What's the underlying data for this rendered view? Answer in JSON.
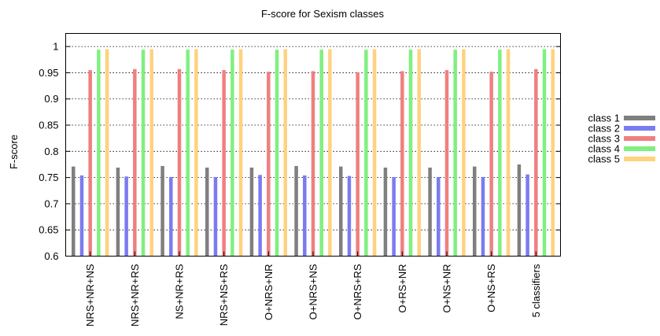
{
  "chart_data": {
    "type": "bar",
    "title": "F-score for Sexism classes",
    "xlabel": "",
    "ylabel": "F-score",
    "ylim": [
      0.6,
      1.025
    ],
    "yticks": [
      "0.6",
      "0.65",
      "0.7",
      "0.75",
      "0.8",
      "0.85",
      "0.9",
      "0.95",
      "1"
    ],
    "grid": true,
    "legend_position": "right",
    "categories": [
      "NRS+NR+NS",
      "NRS+NR+RS",
      "NS+NR+RS",
      "NRS+NS+RS",
      "O+NRS+NR",
      "O+NRS+NS",
      "O+NRS+RS",
      "O+RS+NR",
      "O+NS+NR",
      "O+NS+RS",
      "5 classifiers"
    ],
    "series": [
      {
        "name": "class 1",
        "color": "#7f7f7f",
        "values": [
          0.771,
          0.769,
          0.772,
          0.769,
          0.769,
          0.772,
          0.771,
          0.769,
          0.769,
          0.771,
          0.775
        ]
      },
      {
        "name": "class 2",
        "color": "#7b7bf0",
        "values": [
          0.754,
          0.752,
          0.751,
          0.751,
          0.755,
          0.754,
          0.753,
          0.751,
          0.751,
          0.751,
          0.756
        ]
      },
      {
        "name": "class 3",
        "color": "#f07f7f",
        "values": [
          0.955,
          0.957,
          0.957,
          0.955,
          0.952,
          0.953,
          0.951,
          0.953,
          0.955,
          0.952,
          0.957
        ]
      },
      {
        "name": "class 4",
        "color": "#7ff07f",
        "values": [
          0.994,
          0.994,
          0.994,
          0.994,
          0.994,
          0.994,
          0.994,
          0.994,
          0.994,
          0.994,
          0.995
        ]
      },
      {
        "name": "class 5",
        "color": "#ffd27f",
        "values": [
          0.995,
          0.995,
          0.995,
          0.995,
          0.995,
          0.995,
          0.995,
          0.995,
          0.995,
          0.995,
          0.995
        ]
      }
    ]
  }
}
